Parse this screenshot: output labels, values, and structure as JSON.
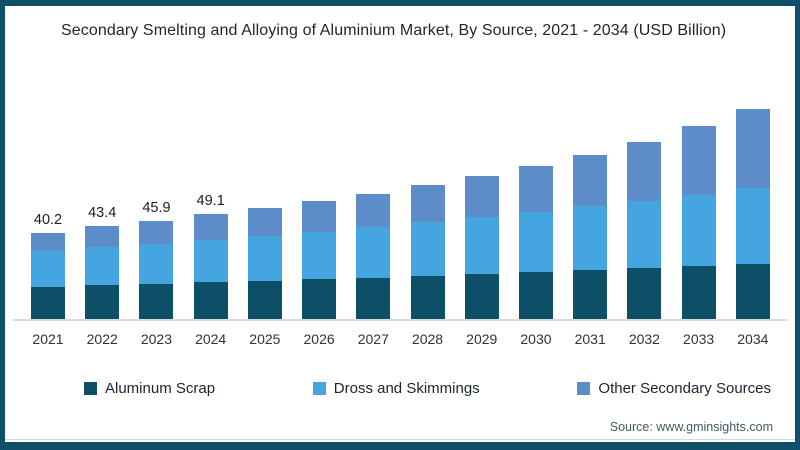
{
  "frame": {
    "border_color": "#0f5068",
    "background": "#ffffff"
  },
  "source_note": "Source: www.gminsights.com",
  "chart_data": {
    "type": "bar",
    "stacked": true,
    "title": "Secondary Smelting and Alloying of Aluminium Market, By Source, 2021 - 2034 (USD Billion)",
    "xlabel": "",
    "ylabel": "",
    "unit": "USD Billion",
    "grid": false,
    "legend_position": "bottom",
    "axis_line_color": "#dadada",
    "categories": [
      "2021",
      "2022",
      "2023",
      "2024",
      "2025",
      "2026",
      "2027",
      "2028",
      "2029",
      "2030",
      "2031",
      "2032",
      "2033",
      "2034"
    ],
    "series": [
      {
        "key": "aluminum-scrap",
        "name": "Aluminum Scrap",
        "color": "#0e4f68",
        "values": [
          15.3,
          16.1,
          16.7,
          17.4,
          18.1,
          18.8,
          19.6,
          20.4,
          21.2,
          22.1,
          23.0,
          23.9,
          24.9,
          25.9
        ]
      },
      {
        "key": "dross-and-skimmings",
        "name": "Dross and Skimmings",
        "color": "#45a5e1",
        "values": [
          16.6,
          17.6,
          18.6,
          19.7,
          20.9,
          22.1,
          23.4,
          24.8,
          26.3,
          27.8,
          29.5,
          31.2,
          33.1,
          35.0
        ]
      },
      {
        "key": "other-secondary-sources",
        "name": "Other Secondary Sources",
        "color": "#5d8dc9",
        "values": [
          8.3,
          9.7,
          10.6,
          12.0,
          13.0,
          14.1,
          15.5,
          17.3,
          19.0,
          21.1,
          24.0,
          27.4,
          31.5,
          36.6
        ]
      }
    ],
    "totals": [
      40.2,
      43.4,
      45.9,
      49.1,
      52.0,
      55.0,
      58.5,
      62.5,
      66.5,
      71.0,
      76.5,
      82.5,
      89.5,
      97.5
    ],
    "data_labels": [
      "40.2",
      "43.4",
      "45.9",
      "49.1",
      "",
      "",
      "",
      "",
      "",
      "",
      "",
      "",
      "",
      ""
    ]
  }
}
